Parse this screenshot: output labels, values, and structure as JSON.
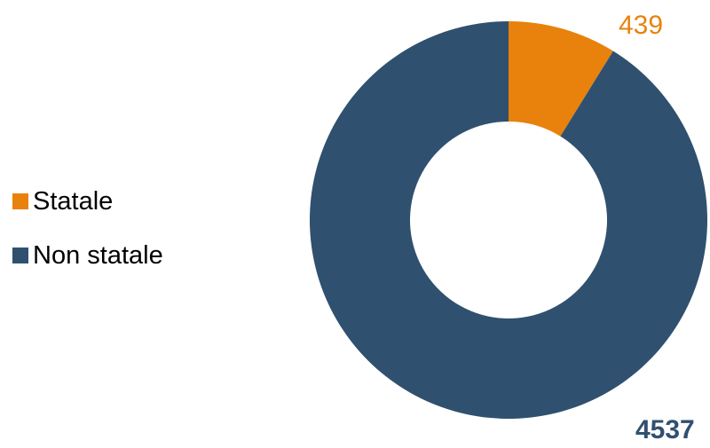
{
  "chart_data": {
    "type": "pie",
    "donut": true,
    "categories": [
      "Statale",
      "Non statale"
    ],
    "values": [
      439,
      4537
    ],
    "colors": [
      "#e8820c",
      "#30506f"
    ],
    "data_labels": [
      "439",
      "4537"
    ],
    "legend_position": "left",
    "start_angle": "top",
    "direction": "clockwise",
    "title": ""
  }
}
